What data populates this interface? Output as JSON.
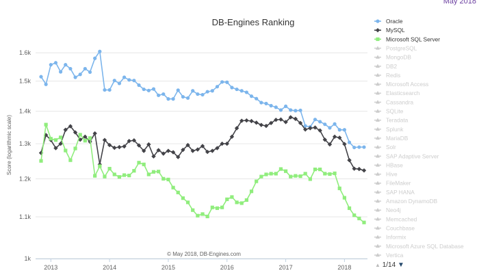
{
  "corner_text": "May 2018",
  "chart_data": {
    "type": "line",
    "title": "DB-Engines Ranking",
    "ylabel": "Score (logarithmic scale)",
    "xlabel": "",
    "credits": "© May 2018, DB-Engines.com",
    "y_scale": "log",
    "ylim": [
      1000,
      1680
    ],
    "y_ticks": [
      {
        "value": 1000,
        "label": "1k"
      },
      {
        "value": 1100,
        "label": "1.1k"
      },
      {
        "value": 1200,
        "label": "1.2k"
      },
      {
        "value": 1300,
        "label": "1.3k"
      },
      {
        "value": 1400,
        "label": "1.4k"
      },
      {
        "value": 1500,
        "label": "1.5k"
      },
      {
        "value": 1600,
        "label": "1.6k"
      }
    ],
    "xlim": [
      "2012-11",
      "2018-05"
    ],
    "x_ticks": [
      {
        "value": "2013-01",
        "label": "2013"
      },
      {
        "value": "2014-01",
        "label": "2014"
      },
      {
        "value": "2015-01",
        "label": "2015"
      },
      {
        "value": "2016-01",
        "label": "2016"
      },
      {
        "value": "2017-01",
        "label": "2017"
      },
      {
        "value": "2018-01",
        "label": "2018"
      }
    ],
    "grid": true,
    "legend_position": "right",
    "series": [
      {
        "name": "Oracle",
        "color": "#7cb5ec",
        "marker": "circle",
        "points": [
          [
            "2012-11",
            1515
          ],
          [
            "2012-12",
            1489
          ],
          [
            "2013-01",
            1557
          ],
          [
            "2013-02",
            1564
          ],
          [
            "2013-03",
            1532
          ],
          [
            "2013-04",
            1557
          ],
          [
            "2013-05",
            1543
          ],
          [
            "2013-06",
            1513
          ],
          [
            "2013-07",
            1523
          ],
          [
            "2013-08",
            1543
          ],
          [
            "2013-09",
            1531
          ],
          [
            "2013-10",
            1580
          ],
          [
            "2013-11",
            1605
          ],
          [
            "2013-12",
            1470
          ],
          [
            "2014-01",
            1470
          ],
          [
            "2014-02",
            1502
          ],
          [
            "2014-03",
            1492
          ],
          [
            "2014-04",
            1513
          ],
          [
            "2014-05",
            1504
          ],
          [
            "2014-06",
            1502
          ],
          [
            "2014-07",
            1486
          ],
          [
            "2014-08",
            1472
          ],
          [
            "2014-09",
            1468
          ],
          [
            "2014-10",
            1473
          ],
          [
            "2014-11",
            1452
          ],
          [
            "2014-12",
            1456
          ],
          [
            "2015-01",
            1440
          ],
          [
            "2015-02",
            1440
          ],
          [
            "2015-03",
            1469
          ],
          [
            "2015-04",
            1447
          ],
          [
            "2015-05",
            1443
          ],
          [
            "2015-06",
            1467
          ],
          [
            "2015-07",
            1456
          ],
          [
            "2015-08",
            1454
          ],
          [
            "2015-09",
            1464
          ],
          [
            "2015-10",
            1467
          ],
          [
            "2015-11",
            1481
          ],
          [
            "2015-12",
            1497
          ],
          [
            "2016-01",
            1496
          ],
          [
            "2016-02",
            1478
          ],
          [
            "2016-03",
            1472
          ],
          [
            "2016-04",
            1467
          ],
          [
            "2016-05",
            1462
          ],
          [
            "2016-06",
            1449
          ],
          [
            "2016-07",
            1441
          ],
          [
            "2016-08",
            1428
          ],
          [
            "2016-09",
            1425
          ],
          [
            "2016-10",
            1418
          ],
          [
            "2016-11",
            1413
          ],
          [
            "2016-12",
            1404
          ],
          [
            "2017-01",
            1416
          ],
          [
            "2017-02",
            1404
          ],
          [
            "2017-03",
            1402
          ],
          [
            "2017-04",
            1403
          ],
          [
            "2017-05",
            1354
          ],
          [
            "2017-06",
            1351
          ],
          [
            "2017-07",
            1374
          ],
          [
            "2017-08",
            1367
          ],
          [
            "2017-09",
            1359
          ],
          [
            "2017-10",
            1348
          ],
          [
            "2017-11",
            1360
          ],
          [
            "2017-12",
            1342
          ],
          [
            "2018-01",
            1342
          ],
          [
            "2018-02",
            1304
          ],
          [
            "2018-03",
            1289
          ],
          [
            "2018-04",
            1290
          ],
          [
            "2018-05",
            1290
          ]
        ]
      },
      {
        "name": "MySQL",
        "color": "#434348",
        "marker": "diamond",
        "points": [
          [
            "2012-11",
            1273
          ],
          [
            "2012-12",
            1326
          ],
          [
            "2013-01",
            1311
          ],
          [
            "2013-02",
            1287
          ],
          [
            "2013-03",
            1300
          ],
          [
            "2013-04",
            1342
          ],
          [
            "2013-05",
            1353
          ],
          [
            "2013-06",
            1334
          ],
          [
            "2013-07",
            1312
          ],
          [
            "2013-08",
            1321
          ],
          [
            "2013-09",
            1306
          ],
          [
            "2013-10",
            1331
          ],
          [
            "2013-11",
            1240
          ],
          [
            "2013-12",
            1311
          ],
          [
            "2014-01",
            1296
          ],
          [
            "2014-02",
            1288
          ],
          [
            "2014-03",
            1290
          ],
          [
            "2014-04",
            1292
          ],
          [
            "2014-05",
            1308
          ],
          [
            "2014-06",
            1310
          ],
          [
            "2014-07",
            1295
          ],
          [
            "2014-08",
            1279
          ],
          [
            "2014-09",
            1298
          ],
          [
            "2014-10",
            1263
          ],
          [
            "2014-11",
            1281
          ],
          [
            "2014-12",
            1271
          ],
          [
            "2015-01",
            1279
          ],
          [
            "2015-02",
            1275
          ],
          [
            "2015-03",
            1261
          ],
          [
            "2015-04",
            1282
          ],
          [
            "2015-05",
            1296
          ],
          [
            "2015-06",
            1279
          ],
          [
            "2015-07",
            1283
          ],
          [
            "2015-08",
            1293
          ],
          [
            "2015-09",
            1276
          ],
          [
            "2015-10",
            1279
          ],
          [
            "2015-11",
            1287
          ],
          [
            "2015-12",
            1300
          ],
          [
            "2016-01",
            1300
          ],
          [
            "2016-02",
            1321
          ],
          [
            "2016-03",
            1347
          ],
          [
            "2016-04",
            1370
          ],
          [
            "2016-05",
            1371
          ],
          [
            "2016-06",
            1369
          ],
          [
            "2016-07",
            1364
          ],
          [
            "2016-08",
            1357
          ],
          [
            "2016-09",
            1354
          ],
          [
            "2016-10",
            1363
          ],
          [
            "2016-11",
            1373
          ],
          [
            "2016-12",
            1374
          ],
          [
            "2017-01",
            1366
          ],
          [
            "2017-02",
            1381
          ],
          [
            "2017-03",
            1376
          ],
          [
            "2017-04",
            1363
          ],
          [
            "2017-05",
            1343
          ],
          [
            "2017-06",
            1347
          ],
          [
            "2017-07",
            1349
          ],
          [
            "2017-08",
            1340
          ],
          [
            "2017-09",
            1312
          ],
          [
            "2017-10",
            1298
          ],
          [
            "2017-11",
            1321
          ],
          [
            "2017-12",
            1318
          ],
          [
            "2018-01",
            1299
          ],
          [
            "2018-02",
            1252
          ],
          [
            "2018-03",
            1228
          ],
          [
            "2018-04",
            1227
          ],
          [
            "2018-05",
            1223
          ]
        ]
      },
      {
        "name": "Microsoft SQL Server",
        "color": "#90ed7d",
        "marker": "square",
        "points": [
          [
            "2012-11",
            1250
          ],
          [
            "2012-12",
            1358
          ],
          [
            "2013-01",
            1315
          ],
          [
            "2013-02",
            1311
          ],
          [
            "2013-03",
            1319
          ],
          [
            "2013-04",
            1280
          ],
          [
            "2013-05",
            1252
          ],
          [
            "2013-06",
            1286
          ],
          [
            "2013-07",
            1327
          ],
          [
            "2013-08",
            1309
          ],
          [
            "2013-09",
            1317
          ],
          [
            "2013-10",
            1208
          ],
          [
            "2013-11",
            1235
          ],
          [
            "2013-12",
            1206
          ],
          [
            "2014-01",
            1228
          ],
          [
            "2014-02",
            1212
          ],
          [
            "2014-03",
            1205
          ],
          [
            "2014-04",
            1210
          ],
          [
            "2014-05",
            1209
          ],
          [
            "2014-06",
            1222
          ],
          [
            "2014-07",
            1245
          ],
          [
            "2014-08",
            1240
          ],
          [
            "2014-09",
            1212
          ],
          [
            "2014-10",
            1219
          ],
          [
            "2014-11",
            1220
          ],
          [
            "2014-12",
            1200
          ],
          [
            "2015-01",
            1198
          ],
          [
            "2015-02",
            1176
          ],
          [
            "2015-03",
            1163
          ],
          [
            "2015-04",
            1148
          ],
          [
            "2015-05",
            1137
          ],
          [
            "2015-06",
            1117
          ],
          [
            "2015-07",
            1103
          ],
          [
            "2015-08",
            1107
          ],
          [
            "2015-09",
            1101
          ],
          [
            "2015-10",
            1124
          ],
          [
            "2015-11",
            1122
          ],
          [
            "2015-12",
            1124
          ],
          [
            "2016-01",
            1145
          ],
          [
            "2016-02",
            1151
          ],
          [
            "2016-03",
            1137
          ],
          [
            "2016-04",
            1135
          ],
          [
            "2016-05",
            1143
          ],
          [
            "2016-06",
            1166
          ],
          [
            "2016-07",
            1193
          ],
          [
            "2016-08",
            1206
          ],
          [
            "2016-09",
            1212
          ],
          [
            "2016-10",
            1214
          ],
          [
            "2016-11",
            1214
          ],
          [
            "2016-12",
            1227
          ],
          [
            "2017-01",
            1221
          ],
          [
            "2017-02",
            1206
          ],
          [
            "2017-03",
            1208
          ],
          [
            "2017-04",
            1207
          ],
          [
            "2017-05",
            1214
          ],
          [
            "2017-06",
            1199
          ],
          [
            "2017-07",
            1226
          ],
          [
            "2017-08",
            1226
          ],
          [
            "2017-09",
            1214
          ],
          [
            "2017-10",
            1213
          ],
          [
            "2017-11",
            1215
          ],
          [
            "2017-12",
            1174
          ],
          [
            "2018-01",
            1149
          ],
          [
            "2018-02",
            1122
          ],
          [
            "2018-03",
            1104
          ],
          [
            "2018-04",
            1096
          ],
          [
            "2018-05",
            1086
          ]
        ]
      }
    ],
    "legend": {
      "active": [
        "Oracle",
        "MySQL",
        "Microsoft SQL Server"
      ],
      "inactive": [
        "PostgreSQL",
        "MongoDB",
        "DB2",
        "Redis",
        "Microsoft Access",
        "Elasticsearch",
        "Cassandra",
        "SQLite",
        "Teradata",
        "Splunk",
        "MariaDB",
        "Solr",
        "SAP Adaptive Server",
        "HBase",
        "Hive",
        "FileMaker",
        "SAP HANA",
        "Amazon DynamoDB",
        "Neo4j",
        "Memcached",
        "Couchbase",
        "Informix",
        "Microsoft Azure SQL Database",
        "Vertica"
      ],
      "pager": "1/14"
    }
  }
}
